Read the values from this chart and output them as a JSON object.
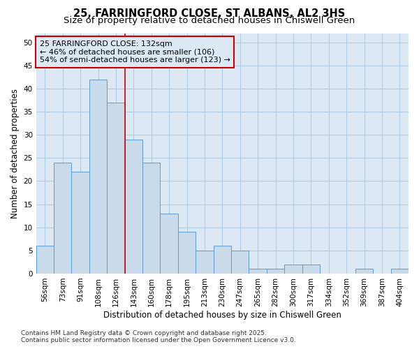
{
  "title_line1": "25, FARRINGFORD CLOSE, ST ALBANS, AL2 3HS",
  "title_line2": "Size of property relative to detached houses in Chiswell Green",
  "xlabel": "Distribution of detached houses by size in Chiswell Green",
  "ylabel": "Number of detached properties",
  "categories": [
    "56sqm",
    "73sqm",
    "91sqm",
    "108sqm",
    "126sqm",
    "143sqm",
    "160sqm",
    "178sqm",
    "195sqm",
    "213sqm",
    "230sqm",
    "247sqm",
    "265sqm",
    "282sqm",
    "300sqm",
    "317sqm",
    "334sqm",
    "352sqm",
    "369sqm",
    "387sqm",
    "404sqm"
  ],
  "values": [
    6,
    24,
    22,
    42,
    37,
    29,
    24,
    13,
    9,
    5,
    6,
    5,
    1,
    1,
    2,
    2,
    0,
    0,
    1,
    0,
    1
  ],
  "bar_color": "#c9daea",
  "bar_edge_color": "#5b9bd5",
  "grid_color": "#adc8e0",
  "plot_bg_color": "#dce9f5",
  "figure_bg_color": "#ffffff",
  "vline_x": 4.5,
  "vline_color": "#cc0000",
  "annotation_line1": "25 FARRINGFORD CLOSE: 132sqm",
  "annotation_line2": "← 46% of detached houses are smaller (106)",
  "annotation_line3": "54% of semi-detached houses are larger (123) →",
  "annotation_box_color": "#cc0000",
  "ylim": [
    0,
    52
  ],
  "yticks": [
    0,
    5,
    10,
    15,
    20,
    25,
    30,
    35,
    40,
    45,
    50
  ],
  "footer_line1": "Contains HM Land Registry data © Crown copyright and database right 2025.",
  "footer_line2": "Contains public sector information licensed under the Open Government Licence v3.0.",
  "title_fontsize": 10.5,
  "subtitle_fontsize": 9.5,
  "tick_fontsize": 7.5,
  "ylabel_fontsize": 8.5,
  "xlabel_fontsize": 8.5,
  "annotation_fontsize": 8.0,
  "footer_fontsize": 6.5
}
